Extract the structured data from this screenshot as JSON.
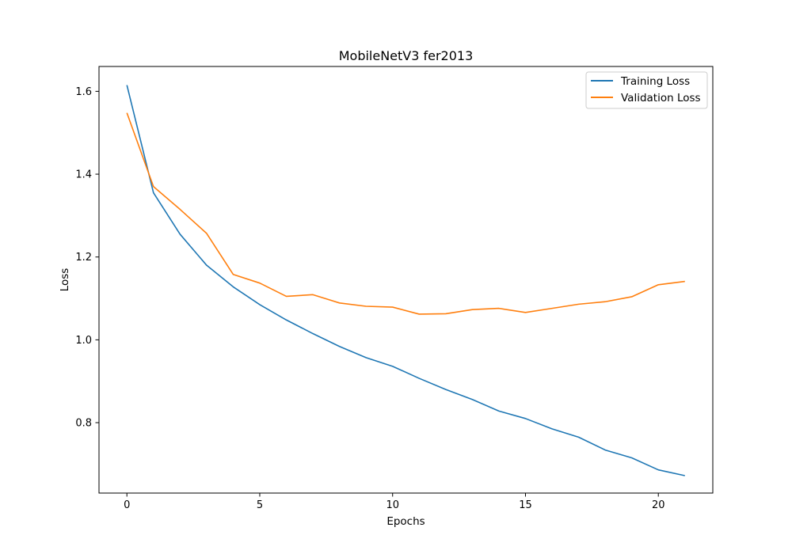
{
  "chart_data": {
    "type": "line",
    "title": "MobileNetV3 fer2013",
    "xlabel": "Epochs",
    "ylabel": "Loss",
    "xlim": [
      -1.05,
      22.05
    ],
    "ylim": [
      0.63,
      1.66
    ],
    "x_ticks": [
      0,
      5,
      10,
      15,
      20
    ],
    "y_ticks": [
      0.8,
      1.0,
      1.2,
      1.4,
      1.6
    ],
    "x_tick_labels": [
      "0",
      "5",
      "10",
      "15",
      "20"
    ],
    "y_tick_labels": [
      "0.8",
      "1.0",
      "1.2",
      "1.4",
      "1.6"
    ],
    "grid": false,
    "legend_position": "top-right",
    "x": [
      0,
      1,
      2,
      3,
      4,
      5,
      6,
      7,
      8,
      9,
      10,
      11,
      12,
      13,
      14,
      15,
      16,
      17,
      18,
      19,
      20,
      21
    ],
    "series": [
      {
        "name": "Training Loss",
        "color": "#1f77b4",
        "values": [
          1.615,
          1.355,
          1.255,
          1.18,
          1.128,
          1.085,
          1.048,
          1.015,
          0.984,
          0.957,
          0.936,
          0.907,
          0.88,
          0.856,
          0.828,
          0.81,
          0.785,
          0.765,
          0.734,
          0.715,
          0.686,
          0.672
        ]
      },
      {
        "name": "Validation Loss",
        "color": "#ff7f0e",
        "values": [
          1.548,
          1.37,
          1.315,
          1.257,
          1.158,
          1.137,
          1.105,
          1.109,
          1.089,
          1.081,
          1.079,
          1.062,
          1.063,
          1.073,
          1.076,
          1.066,
          1.076,
          1.086,
          1.092,
          1.104,
          1.133,
          1.141
        ]
      }
    ]
  }
}
